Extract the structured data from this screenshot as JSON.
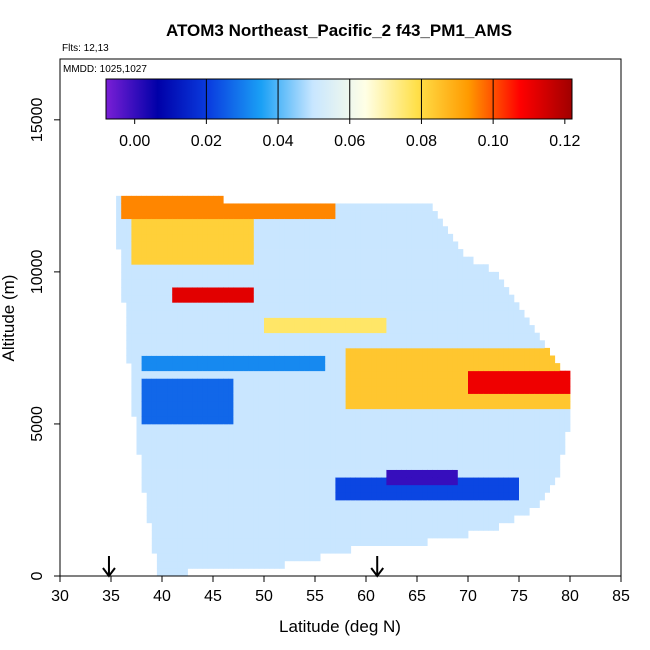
{
  "chart_data": {
    "type": "heatmap",
    "title": "ATOM3 Northeast_Pacific_2 f43_PM1_AMS",
    "annotations": [
      "Flts: 12,13",
      "MMDD: 1025,1027"
    ],
    "xlabel": "Latitude (deg N)",
    "ylabel": "Altitude (m)",
    "xlim": [
      30,
      85
    ],
    "ylim": [
      0,
      17000
    ],
    "x_ticks": [
      30,
      35,
      40,
      45,
      50,
      55,
      60,
      65,
      70,
      75,
      80,
      85
    ],
    "y_ticks": [
      0,
      5000,
      10000,
      15000
    ],
    "colorbar": {
      "range": [
        -0.008,
        0.122
      ],
      "ticks": [
        0.0,
        0.02,
        0.04,
        0.06,
        0.08,
        0.1,
        0.12
      ],
      "tick_labels": [
        "0.00",
        "0.02",
        "0.04",
        "0.06",
        "0.08",
        "0.10",
        "0.12"
      ],
      "divisions": [
        0.02,
        0.04,
        0.06,
        0.08,
        0.1
      ],
      "colors": [
        "#7a1fd6",
        "#0000a8",
        "#0a3ee0",
        "#1aa0f5",
        "#c8e6ff",
        "#ffffe6",
        "#ffe04a",
        "#ff9a00",
        "#ff0000",
        "#a00000"
      ]
    },
    "background_value": 0.05,
    "domain_outline": [
      [
        35.3,
        12400
      ],
      [
        38.5,
        12500
      ],
      [
        42,
        12450
      ],
      [
        50,
        12300
      ],
      [
        57,
        12300
      ],
      [
        61,
        12350
      ],
      [
        66,
        12300
      ],
      [
        68,
        11500
      ],
      [
        70,
        10500
      ],
      [
        73,
        10000
      ],
      [
        76,
        8500
      ],
      [
        78,
        7300
      ],
      [
        80,
        6600
      ],
      [
        80,
        5000
      ],
      [
        79,
        3500
      ],
      [
        77,
        2300
      ],
      [
        72,
        1500
      ],
      [
        64,
        1000
      ],
      [
        59,
        900
      ],
      [
        53,
        400
      ],
      [
        49,
        300
      ],
      [
        44,
        200
      ],
      [
        40.3,
        0
      ],
      [
        39.6,
        0
      ],
      [
        38.5,
        2200
      ],
      [
        37.5,
        4500
      ],
      [
        36.5,
        8000
      ],
      [
        36,
        10000
      ],
      [
        35.6,
        11300
      ]
    ],
    "anomalies": [
      {
        "lat": [
          36,
          57
        ],
        "alt": [
          11700,
          12400
        ],
        "value": 0.095
      },
      {
        "lat": [
          37,
          49
        ],
        "alt": [
          10200,
          11700
        ],
        "value": 0.082
      },
      {
        "lat": [
          41,
          49
        ],
        "alt": [
          9000,
          9600
        ],
        "value": 0.112
      },
      {
        "lat": [
          50,
          62
        ],
        "alt": [
          8000,
          8500
        ],
        "value": 0.076
      },
      {
        "lat": [
          58,
          80
        ],
        "alt": [
          5400,
          7400
        ],
        "value": 0.084
      },
      {
        "lat": [
          70,
          80
        ],
        "alt": [
          6000,
          6700
        ],
        "value": 0.11
      },
      {
        "lat": [
          38,
          56
        ],
        "alt": [
          6700,
          7300
        ],
        "value": 0.032
      },
      {
        "lat": [
          38,
          47
        ],
        "alt": [
          5000,
          6400
        ],
        "value": 0.027
      },
      {
        "lat": [
          57,
          75
        ],
        "alt": [
          2500,
          3300
        ],
        "value": 0.022
      },
      {
        "lat": [
          62,
          69
        ],
        "alt": [
          3000,
          3400
        ],
        "value": 0.0
      }
    ],
    "flight_markers_lat": [
      34.8,
      61.1
    ]
  }
}
